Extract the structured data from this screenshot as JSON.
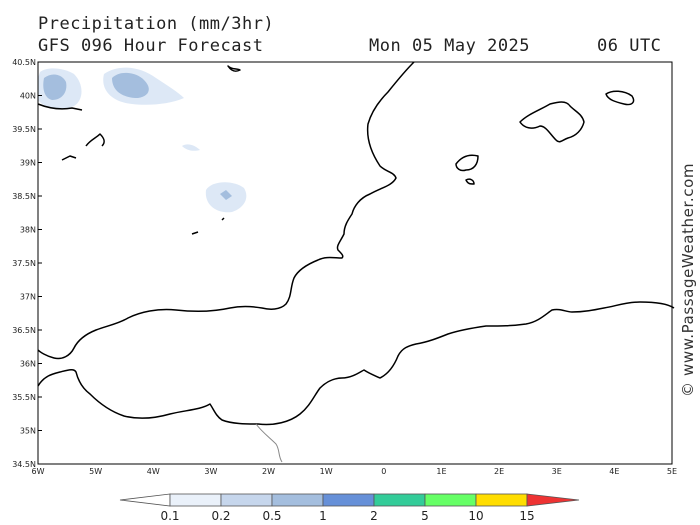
{
  "header": {
    "title": "Precipitation (mm/3hr)",
    "subtitle": "GFS 096 Hour Forecast",
    "date": "Mon 05 May 2025",
    "time": "06 UTC"
  },
  "map": {
    "lat_ticks": [
      "40.5N",
      "40N",
      "39.5N",
      "39N",
      "38.5N",
      "38N",
      "37.5N",
      "37N",
      "36.5N",
      "36N",
      "35.5N",
      "35N",
      "34.5N"
    ],
    "lon_ticks": [
      "6W",
      "5W",
      "4W",
      "3W",
      "2W",
      "1W",
      "0",
      "1E",
      "2E",
      "3E",
      "4E",
      "5E"
    ],
    "lat_range": [
      34.5,
      40.5
    ],
    "lon_range": [
      -6,
      5
    ],
    "colors": {
      "coast": "#000000",
      "border": "#888888",
      "precip_light": "#dde8f6",
      "precip_medium": "#a4bede"
    }
  },
  "legend": {
    "labels": [
      "0.1",
      "0.2",
      "0.5",
      "1",
      "2",
      "5",
      "10",
      "15"
    ],
    "colors": [
      "#eaf1fa",
      "#c6d6ec",
      "#a4bede",
      "#6690d8",
      "#33cc99",
      "#66ff66",
      "#ffdd00",
      "#ff9900",
      "#ee3333"
    ]
  },
  "watermark": "© www.PassageWeather.com"
}
